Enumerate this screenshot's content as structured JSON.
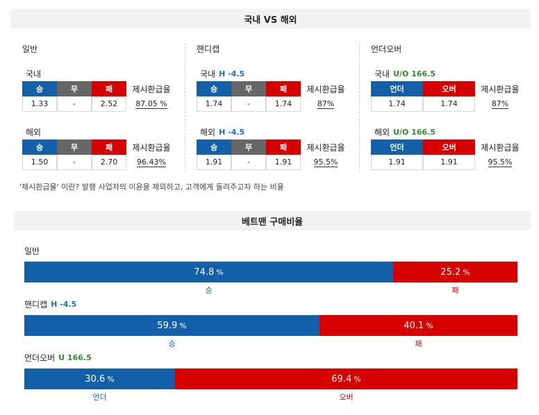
{
  "header1": "국내 VS 해외",
  "header2": "베트맨 구매비율",
  "colors": {
    "win": "#1460a8",
    "draw": "#666666",
    "lose": "#d60000",
    "handicap": "#1a6fc1",
    "overunder": "#2e8b2e"
  },
  "sections": {
    "general": {
      "title": "일반",
      "headers": [
        "승",
        "무",
        "패"
      ],
      "refund_label": "제시환급율",
      "domestic": {
        "label": "국내",
        "values": [
          "1.33",
          "-",
          "2.52"
        ],
        "refund": "87.05 %"
      },
      "overseas": {
        "label": "해외",
        "values": [
          "1.50",
          "-",
          "2.70"
        ],
        "refund": "96.43%"
      }
    },
    "handicap": {
      "title": "핸디캡",
      "headers": [
        "승",
        "무",
        "패"
      ],
      "refund_label": "제시환급율",
      "domestic": {
        "label": "국내",
        "line": "H -4.5",
        "values": [
          "1.74",
          "-",
          "1.74"
        ],
        "refund": "87%"
      },
      "overseas": {
        "label": "해외",
        "line": "H -4.5",
        "values": [
          "1.91",
          "-",
          "1.91"
        ],
        "refund": "95.5%"
      }
    },
    "overunder": {
      "title": "언더오버",
      "headers": [
        "언더",
        "오버"
      ],
      "refund_label": "제시환급율",
      "domestic": {
        "label": "국내",
        "line": "U/O 166.5",
        "values": [
          "1.74",
          "1.74"
        ],
        "refund": "87%"
      },
      "overseas": {
        "label": "해외",
        "line": "U/O 166.5",
        "values": [
          "1.91",
          "1.91"
        ],
        "refund": "95.5%"
      }
    }
  },
  "note": "'제시환급율' 이란? 발행 사업자의 이윤을 제외하고, 고객에게 돌려주고자 하는 비율",
  "ratios": [
    {
      "label": "일반",
      "line": "",
      "left_value": 74.8,
      "right_value": 25.2,
      "left_text": "74.8",
      "right_text": "25.2",
      "pct": "%",
      "left_name": "승",
      "right_name": "패"
    },
    {
      "label": "핸디캡",
      "line": "H -4.5",
      "left_value": 59.9,
      "right_value": 40.1,
      "left_text": "59.9",
      "right_text": "40.1",
      "pct": "%",
      "left_name": "승",
      "right_name": "패"
    },
    {
      "label": "언더오버",
      "line": "U 166.5",
      "left_value": 30.6,
      "right_value": 69.4,
      "left_text": "30.6",
      "right_text": "69.4",
      "pct": "%",
      "left_name": "언더",
      "right_name": "오버"
    }
  ]
}
